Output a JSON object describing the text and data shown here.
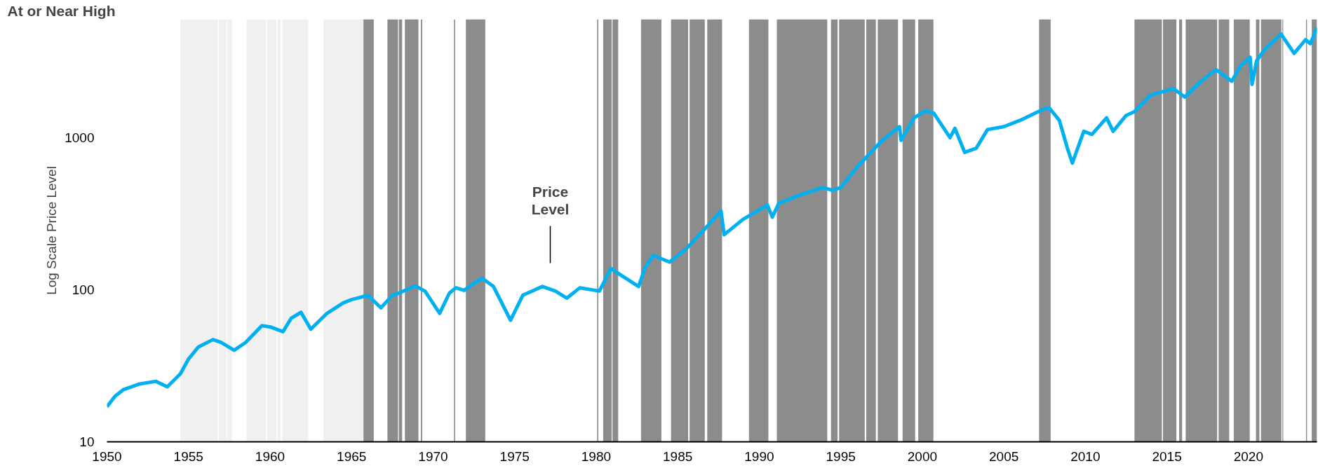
{
  "chart_data": {
    "type": "line",
    "ylabel": "Log Scale Price Level",
    "log": "y",
    "grid": false,
    "marker": "none",
    "line_style": "solid",
    "xlim": [
      1950,
      2024.2
    ],
    "ylim": [
      10,
      6000
    ],
    "xticks": [
      1950,
      1955,
      1960,
      1965,
      1970,
      1975,
      1980,
      1985,
      1990,
      1995,
      2000,
      2005,
      2010,
      2015,
      2020
    ],
    "yticks": [
      10,
      100,
      1000
    ],
    "series": [
      {
        "color": "#00b0f0",
        "x": [
          1950,
          1950.5,
          1951,
          1952,
          1953,
          1953.7,
          1954.5,
          1955,
          1955.6,
          1956.5,
          1957,
          1957.8,
          1958.5,
          1959.5,
          1960,
          1960.8,
          1961.3,
          1961.9,
          1962.5,
          1963.5,
          1964.5,
          1965,
          1966.0,
          1966.8,
          1967.5,
          1968.0,
          1968.9,
          1969.5,
          1970.4,
          1971.0,
          1971.4,
          1971.9,
          1972.5,
          1973.0,
          1973.7,
          1974.75,
          1975.5,
          1976.7,
          1977.5,
          1978.2,
          1979,
          1980.2,
          1980.9,
          1981.5,
          1982.6,
          1983.0,
          1983.5,
          1984.5,
          1985.5,
          1986.5,
          1987.65,
          1987.85,
          1989,
          1990.5,
          1990.8,
          1991.2,
          1992.5,
          1993.9,
          1994.5,
          1995,
          1996,
          1997.5,
          1998.6,
          1998.7,
          1999.5,
          2000.2,
          2000.7,
          2001.7,
          2002.0,
          2002.6,
          2003.3,
          2004,
          2005,
          2006,
          2007.5,
          2007.8,
          2008.4,
          2008.9,
          2009.2,
          2009.9,
          2010.4,
          2011.3,
          2011.7,
          2012.5,
          2013,
          2014,
          2015.4,
          2016.1,
          2017,
          2018,
          2018.98,
          2019.5,
          2020.1,
          2020.22,
          2020.5,
          2021,
          2022.0,
          2022.8,
          2023.5,
          2023.8,
          2024.2
        ],
        "values": [
          17,
          20,
          22,
          24,
          25,
          23,
          28,
          35,
          42,
          47,
          45,
          40,
          45,
          58,
          57,
          53,
          65,
          71,
          55,
          70,
          82,
          86,
          92,
          76,
          92,
          96,
          106,
          98,
          70,
          95,
          103,
          99,
          110,
          119,
          105,
          63,
          92,
          105,
          98,
          88,
          103,
          98,
          138,
          125,
          105,
          140,
          168,
          152,
          185,
          240,
          330,
          230,
          290,
          360,
          300,
          370,
          420,
          470,
          450,
          470,
          640,
          950,
          1180,
          960,
          1350,
          1500,
          1450,
          1000,
          1150,
          800,
          850,
          1130,
          1180,
          1300,
          1550,
          1560,
          1300,
          850,
          680,
          1100,
          1050,
          1350,
          1100,
          1400,
          1480,
          1900,
          2100,
          1850,
          2300,
          2800,
          2350,
          2950,
          3380,
          2240,
          3200,
          3800,
          4800,
          3580,
          4400,
          4150,
          5300
        ]
      }
    ],
    "bands": [
      {
        "axis": "x",
        "from": 1954.5,
        "to": 1956.8,
        "color": "#f0f0f0"
      },
      {
        "axis": "x",
        "from": 1956.86,
        "to": 1957.33,
        "color": "#f0f0f0"
      },
      {
        "axis": "x",
        "from": 1957.37,
        "to": 1957.67,
        "color": "#f0f0f0"
      },
      {
        "axis": "x",
        "from": 1958.56,
        "to": 1959.77,
        "color": "#f0f0f0"
      },
      {
        "axis": "x",
        "from": 1959.83,
        "to": 1960.39,
        "color": "#f0f0f0"
      },
      {
        "axis": "x",
        "from": 1960.45,
        "to": 1960.65,
        "color": "#f0f0f0"
      },
      {
        "axis": "x",
        "from": 1960.75,
        "to": 1962.34,
        "color": "#f0f0f0"
      },
      {
        "axis": "x",
        "from": 1963.27,
        "to": 1965.73,
        "color": "#f0f0f0"
      },
      {
        "axis": "x",
        "from": 1965.73,
        "to": 1966.36,
        "color": "#8c8c8c"
      },
      {
        "axis": "x",
        "from": 1967.2,
        "to": 1967.85,
        "color": "#8c8c8c"
      },
      {
        "axis": "x",
        "from": 1967.9,
        "to": 1968.1,
        "color": "#8c8c8c"
      },
      {
        "axis": "x",
        "from": 1968.27,
        "to": 1969.1,
        "color": "#8c8c8c"
      },
      {
        "axis": "x",
        "from": 1969.25,
        "to": 1969.33,
        "color": "#8c8c8c"
      },
      {
        "axis": "x",
        "from": 1971.28,
        "to": 1971.35,
        "color": "#8c8c8c"
      },
      {
        "axis": "x",
        "from": 1972.01,
        "to": 1973.2,
        "color": "#8c8c8c"
      },
      {
        "axis": "x",
        "from": 1980.06,
        "to": 1980.13,
        "color": "#8c8c8c"
      },
      {
        "axis": "x",
        "from": 1980.43,
        "to": 1980.95,
        "color": "#8c8c8c"
      },
      {
        "axis": "x",
        "from": 1981.0,
        "to": 1981.35,
        "color": "#8c8c8c"
      },
      {
        "axis": "x",
        "from": 1982.75,
        "to": 1984.0,
        "color": "#8c8c8c"
      },
      {
        "axis": "x",
        "from": 1984.59,
        "to": 1985.64,
        "color": "#8c8c8c"
      },
      {
        "axis": "x",
        "from": 1985.73,
        "to": 1986.66,
        "color": "#8c8c8c"
      },
      {
        "axis": "x",
        "from": 1986.81,
        "to": 1987.72,
        "color": "#8c8c8c"
      },
      {
        "axis": "x",
        "from": 1989.37,
        "to": 1990.56,
        "color": "#8c8c8c"
      },
      {
        "axis": "x",
        "from": 1991.08,
        "to": 1994.17,
        "color": "#8c8c8c"
      },
      {
        "axis": "x",
        "from": 1994.4,
        "to": 1994.8,
        "color": "#8c8c8c"
      },
      {
        "axis": "x",
        "from": 1994.9,
        "to": 1996.47,
        "color": "#8c8c8c"
      },
      {
        "axis": "x",
        "from": 1996.56,
        "to": 1997.15,
        "color": "#8c8c8c"
      },
      {
        "axis": "x",
        "from": 1997.27,
        "to": 1998.51,
        "color": "#8c8c8c"
      },
      {
        "axis": "x",
        "from": 1998.79,
        "to": 1999.56,
        "color": "#8c8c8c"
      },
      {
        "axis": "x",
        "from": 1999.75,
        "to": 2000.68,
        "color": "#8c8c8c"
      },
      {
        "axis": "x",
        "from": 2007.16,
        "to": 2007.87,
        "color": "#8c8c8c"
      },
      {
        "axis": "x",
        "from": 2013.01,
        "to": 2014.69,
        "color": "#8c8c8c"
      },
      {
        "axis": "x",
        "from": 2014.76,
        "to": 2015.58,
        "color": "#8c8c8c"
      },
      {
        "axis": "x",
        "from": 2015.75,
        "to": 2015.93,
        "color": "#8c8c8c"
      },
      {
        "axis": "x",
        "from": 2016.15,
        "to": 2018.08,
        "color": "#8c8c8c"
      },
      {
        "axis": "x",
        "from": 2018.17,
        "to": 2018.82,
        "color": "#8c8c8c"
      },
      {
        "axis": "x",
        "from": 2019.1,
        "to": 2020.08,
        "color": "#8c8c8c"
      },
      {
        "axis": "x",
        "from": 2020.46,
        "to": 2020.67,
        "color": "#8c8c8c"
      },
      {
        "axis": "x",
        "from": 2020.77,
        "to": 2022.02,
        "color": "#8c8c8c"
      },
      {
        "axis": "x",
        "from": 2022.08,
        "to": 2022.13,
        "color": "#8c8c8c"
      },
      {
        "axis": "x",
        "from": 2023.53,
        "to": 2023.59,
        "color": "#8c8c8c"
      },
      {
        "axis": "x",
        "from": 2023.88,
        "to": 2024.2,
        "color": "#8c8c8c"
      }
    ],
    "annotations": [
      "At or Near High",
      "Price Level"
    ]
  }
}
